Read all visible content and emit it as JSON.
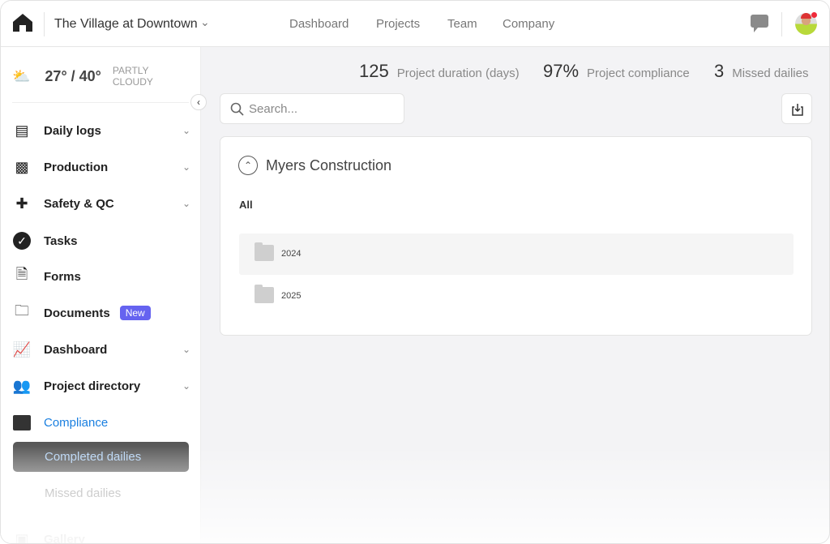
{
  "header": {
    "project": "The Village at Downtown",
    "nav": [
      "Dashboard",
      "Projects",
      "Team",
      "Company"
    ]
  },
  "weather": {
    "temp": "27° / 40°",
    "condition_line1": "PARTLY",
    "condition_line2": "CLOUDY"
  },
  "sidebar": {
    "items": [
      {
        "label": "Daily logs",
        "icon": "daily-logs-icon",
        "dropdown": true
      },
      {
        "label": "Production",
        "icon": "production-icon",
        "dropdown": true
      },
      {
        "label": "Safety & QC",
        "icon": "first-aid-icon",
        "dropdown": true
      },
      {
        "label": "Tasks",
        "icon": "check-circle-icon"
      },
      {
        "label": "Forms",
        "icon": "form-icon"
      },
      {
        "label": "Documents",
        "icon": "folder-icon",
        "badge": "New"
      },
      {
        "label": "Dashboard",
        "icon": "chart-icon",
        "dropdown": true
      },
      {
        "label": "Project directory",
        "icon": "people-icon",
        "dropdown": true
      },
      {
        "label": "Compliance",
        "icon": "archive-icon",
        "active": true
      },
      {
        "label": "Gallery",
        "icon": "image-icon"
      }
    ],
    "compliance_sub": [
      "Completed dailies",
      "Missed dailies"
    ]
  },
  "stats": [
    {
      "value": "125",
      "label": "Project duration (days)"
    },
    {
      "value": "97%",
      "label": "Project compliance"
    },
    {
      "value": "3",
      "label": "Missed dailies"
    }
  ],
  "search": {
    "placeholder": "Search..."
  },
  "card": {
    "title": "Myers Construction",
    "filter": "All",
    "folders": [
      "2024",
      "2025"
    ]
  },
  "colors": {
    "accent": "#1a7fe0",
    "badge": "#6563f0",
    "notification": "#f0293a"
  }
}
